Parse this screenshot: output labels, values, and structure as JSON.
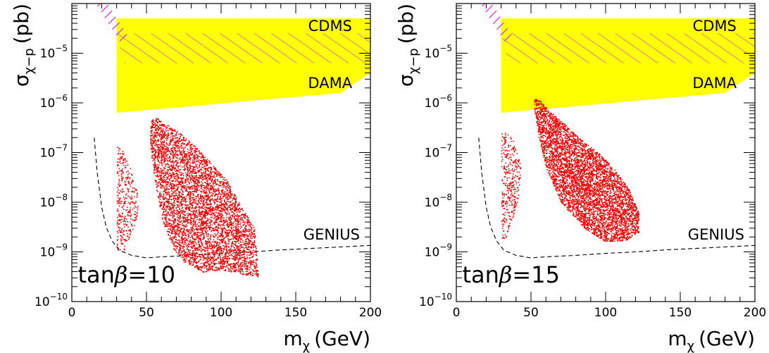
{
  "chart_data": [
    {
      "type": "scatter",
      "xlabel": "m_χ (GeV)",
      "xlabel_parts": {
        "m": "m",
        "sub": "χ",
        "unit": "(GeV)"
      },
      "ylabel": "σ_χ−p (pb)",
      "ylabel_parts": {
        "sigma": "σ",
        "sub": "χ−p",
        "unit": "(pb)"
      },
      "xlim": [
        0,
        200
      ],
      "ylim": [
        1e-10,
        0.0001
      ],
      "yscale": "log",
      "x_ticks": [
        0,
        50,
        100,
        150,
        200
      ],
      "x_tick_labels": [
        "0",
        "50",
        "100",
        "150",
        "200"
      ],
      "y_ticks": [
        -10,
        -9,
        -8,
        -7,
        -6,
        -5
      ],
      "y_tick_base": "10",
      "y_tick_exponents": [
        "−10",
        "−9",
        "−8",
        "−7",
        "−6",
        "−5"
      ],
      "annotation": {
        "prefix": "tan",
        "greek": "β",
        "suffix": "=10"
      },
      "region_labels": {
        "cdms": "CDMS",
        "dama": "DAMA",
        "genius": "GENIUS"
      },
      "dama_region": {
        "x": [
          30,
          200,
          200,
          180,
          30
        ],
        "logy": [
          -4.3,
          -4.3,
          -5.4,
          -5.8,
          -6.2
        ]
      },
      "cdms_hatch": {
        "x": [
          30,
          200,
          200,
          35
        ],
        "logy": [
          -4.6,
          -4.6,
          -5.2,
          -5.2
        ]
      },
      "excluded_hatch": {
        "x": [
          20,
          35
        ],
        "logy": [
          -4.0,
          -4.7
        ]
      },
      "genius_line": {
        "x": [
          15,
          17,
          20,
          23,
          27,
          32,
          40,
          50,
          60,
          80,
          100,
          120,
          140,
          160,
          180,
          200
        ],
        "logy": [
          -6.7,
          -7.4,
          -8.1,
          -8.5,
          -8.78,
          -8.97,
          -9.07,
          -9.12,
          -9.1,
          -9.07,
          -9.03,
          -9.0,
          -8.96,
          -8.93,
          -8.9,
          -8.87
        ]
      },
      "scatter_regions": [
        {
          "name": "",
          "x": [
            30,
            33,
            37,
            40,
            44,
            44,
            40,
            36,
            33,
            30
          ],
          "logy": [
            -6.85,
            -6.9,
            -7.1,
            -7.4,
            -7.8,
            -8.3,
            -8.6,
            -8.9,
            -9.1,
            -9.0
          ],
          "count": 350
        },
        {
          "name": "",
          "x": [
            53,
            57,
            62,
            70,
            80,
            90,
            105,
            112,
            118,
            122,
            125,
            115,
            100,
            88,
            75,
            67,
            60,
            55,
            52
          ],
          "logy": [
            -6.3,
            -6.3,
            -6.4,
            -6.55,
            -6.8,
            -7.1,
            -7.6,
            -8.0,
            -8.3,
            -8.5,
            -9.5,
            -9.45,
            -9.35,
            -9.4,
            -9.2,
            -8.9,
            -8.3,
            -7.5,
            -6.8
          ],
          "count": 5000
        }
      ]
    },
    {
      "type": "scatter",
      "xlabel": "m_χ (GeV)",
      "xlabel_parts": {
        "m": "m",
        "sub": "χ",
        "unit": "(GeV)"
      },
      "ylabel": "σ_χ−p (pb)",
      "ylabel_parts": {
        "sigma": "σ",
        "sub": "χ−p",
        "unit": "(pb)"
      },
      "xlim": [
        0,
        200
      ],
      "ylim": [
        1e-10,
        0.0001
      ],
      "yscale": "log",
      "x_ticks": [
        0,
        50,
        100,
        150,
        200
      ],
      "x_tick_labels": [
        "0",
        "50",
        "100",
        "150",
        "200"
      ],
      "y_ticks": [
        -10,
        -9,
        -8,
        -7,
        -6,
        -5
      ],
      "y_tick_base": "10",
      "y_tick_exponents": [
        "−10",
        "−9",
        "−8",
        "−7",
        "−6",
        "−5"
      ],
      "annotation": {
        "prefix": "tan",
        "greek": "β",
        "suffix": "=15"
      },
      "region_labels": {
        "cdms": "CDMS",
        "dama": "DAMA",
        "genius": "GENIUS"
      },
      "dama_region": {
        "x": [
          30,
          200,
          200,
          180,
          30
        ],
        "logy": [
          -4.3,
          -4.3,
          -5.4,
          -5.8,
          -6.2
        ]
      },
      "cdms_hatch": {
        "x": [
          30,
          200,
          200,
          35
        ],
        "logy": [
          -4.6,
          -4.6,
          -5.2,
          -5.2
        ]
      },
      "excluded_hatch": {
        "x": [
          20,
          35
        ],
        "logy": [
          -4.0,
          -4.7
        ]
      },
      "genius_line": {
        "x": [
          15,
          17,
          20,
          23,
          27,
          32,
          40,
          50,
          60,
          80,
          100,
          120,
          140,
          160,
          180,
          200
        ],
        "logy": [
          -6.7,
          -7.4,
          -8.1,
          -8.5,
          -8.78,
          -8.97,
          -9.07,
          -9.12,
          -9.1,
          -9.07,
          -9.03,
          -9.0,
          -8.96,
          -8.93,
          -8.9,
          -8.87
        ]
      },
      "scatter_regions": [
        {
          "name": "",
          "x": [
            30,
            33,
            37,
            40,
            43,
            42,
            39,
            35,
            32,
            30
          ],
          "logy": [
            -6.6,
            -6.6,
            -6.7,
            -6.9,
            -7.3,
            -7.8,
            -8.2,
            -8.5,
            -8.8,
            -8.8
          ],
          "count": 350
        },
        {
          "name": "",
          "x": [
            52,
            56,
            62,
            72,
            82,
            95,
            105,
            115,
            122,
            122,
            115,
            100,
            85,
            70,
            60,
            55,
            52
          ],
          "logy": [
            -5.9,
            -5.95,
            -6.15,
            -6.4,
            -6.7,
            -7.0,
            -7.3,
            -7.7,
            -8.2,
            -8.6,
            -8.75,
            -8.8,
            -8.5,
            -8.0,
            -7.3,
            -6.7,
            -6.1
          ],
          "count": 5000
        }
      ]
    }
  ]
}
